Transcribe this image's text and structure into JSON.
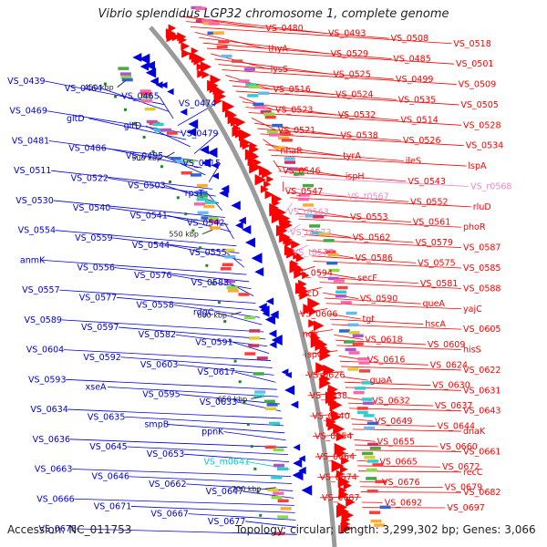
{
  "title": "Vibrio splendidus LGP32 chromosome 1, complete genome",
  "accession": "Accession: NC_011753",
  "summary": "Topology: circular; Length: 3,299,302 bp; Genes: 3,066",
  "colors": {
    "forward_genes": "#ff0000",
    "reverse_genes": "#0000dd",
    "rna_genes": "#ee88cc",
    "misc_rna": "#00cccc",
    "backbone": "#9a9a9a",
    "tick": "#228822"
  },
  "kbp_marks": [
    "450 kbp",
    "500 kbp",
    "550 kbp",
    "600 kbp",
    "650 kbp",
    "700 kbp"
  ],
  "left_labels": [
    {
      "text": "VS_0439",
      "color": "blue"
    },
    {
      "text": "VS_0464",
      "color": "blue"
    },
    {
      "text": "VS_0465",
      "color": "blue"
    },
    {
      "text": "VS_0474",
      "color": "blue"
    },
    {
      "text": "VS_0469",
      "color": "blue"
    },
    {
      "text": "gltD",
      "color": "blue"
    },
    {
      "text": "gltD",
      "color": "blue"
    },
    {
      "text": "VS_0479",
      "color": "blue"
    },
    {
      "text": "VS_0481",
      "color": "blue"
    },
    {
      "text": "VS_0486",
      "color": "blue"
    },
    {
      "text": "VS_0495",
      "color": "blue"
    },
    {
      "text": "VS_0515",
      "color": "blue"
    },
    {
      "text": "VS_0511",
      "color": "blue"
    },
    {
      "text": "VS_0522",
      "color": "blue"
    },
    {
      "text": "VS_0503",
      "color": "blue"
    },
    {
      "text": "rpsT",
      "color": "blue"
    },
    {
      "text": "VS_0530",
      "color": "blue"
    },
    {
      "text": "VS_0540",
      "color": "blue"
    },
    {
      "text": "VS_0541",
      "color": "blue"
    },
    {
      "text": "VS_0542",
      "color": "blue"
    },
    {
      "text": "VS_0554",
      "color": "blue"
    },
    {
      "text": "VS_0559",
      "color": "blue"
    },
    {
      "text": "VS_0544",
      "color": "blue"
    },
    {
      "text": "VS_0555",
      "color": "blue"
    },
    {
      "text": "anmK",
      "color": "blue"
    },
    {
      "text": "VS_0556",
      "color": "blue"
    },
    {
      "text": "VS_0576",
      "color": "blue"
    },
    {
      "text": "VS_0583",
      "color": "blue"
    },
    {
      "text": "VS_0557",
      "color": "blue"
    },
    {
      "text": "VS_0577",
      "color": "blue"
    },
    {
      "text": "VS_0558",
      "color": "blue"
    },
    {
      "text": "rdgC",
      "color": "blue"
    },
    {
      "text": "VS_0589",
      "color": "blue"
    },
    {
      "text": "VS_0597",
      "color": "blue"
    },
    {
      "text": "VS_0582",
      "color": "blue"
    },
    {
      "text": "VS_0591",
      "color": "blue"
    },
    {
      "text": "VS_0604",
      "color": "blue"
    },
    {
      "text": "VS_0592",
      "color": "blue"
    },
    {
      "text": "VS_0603",
      "color": "blue"
    },
    {
      "text": "VS_0617",
      "color": "blue"
    },
    {
      "text": "VS_0593",
      "color": "blue"
    },
    {
      "text": "xseA",
      "color": "blue"
    },
    {
      "text": "VS_0595",
      "color": "blue"
    },
    {
      "text": "VS_0633",
      "color": "blue"
    },
    {
      "text": "VS_0634",
      "color": "blue"
    },
    {
      "text": "VS_0635",
      "color": "blue"
    },
    {
      "text": "smpB",
      "color": "blue"
    },
    {
      "text": "ppnK",
      "color": "blue"
    },
    {
      "text": "VS_0636",
      "color": "blue"
    },
    {
      "text": "VS_0645",
      "color": "blue"
    },
    {
      "text": "VS_0653",
      "color": "blue"
    },
    {
      "text": "VS_m0641",
      "color": "cyan"
    },
    {
      "text": "VS_0663",
      "color": "blue"
    },
    {
      "text": "VS_0646",
      "color": "blue"
    },
    {
      "text": "VS_0662",
      "color": "blue"
    },
    {
      "text": "VS_0647",
      "color": "blue"
    },
    {
      "text": "VS_0666",
      "color": "blue"
    },
    {
      "text": "VS_0671",
      "color": "blue"
    },
    {
      "text": "VS_0667",
      "color": "blue"
    },
    {
      "text": "VS_0677",
      "color": "blue"
    },
    {
      "text": "VS_0678",
      "color": "blue"
    }
  ],
  "right_labels": [
    {
      "text": "VS_0480",
      "color": "red"
    },
    {
      "text": "VS_0493",
      "color": "red"
    },
    {
      "text": "VS_0508",
      "color": "red"
    },
    {
      "text": "VS_0518",
      "color": "red"
    },
    {
      "text": "thyA",
      "color": "red"
    },
    {
      "text": "VS_0529",
      "color": "red"
    },
    {
      "text": "VS_0485",
      "color": "red"
    },
    {
      "text": "VS_0501",
      "color": "red"
    },
    {
      "text": "lysS",
      "color": "red"
    },
    {
      "text": "VS_0525",
      "color": "red"
    },
    {
      "text": "VS_0499",
      "color": "red"
    },
    {
      "text": "VS_0509",
      "color": "red"
    },
    {
      "text": "VS_0516",
      "color": "red"
    },
    {
      "text": "VS_0524",
      "color": "red"
    },
    {
      "text": "VS_0535",
      "color": "red"
    },
    {
      "text": "VS_0505",
      "color": "red"
    },
    {
      "text": "VS_0523",
      "color": "red"
    },
    {
      "text": "VS_0532",
      "color": "red"
    },
    {
      "text": "VS_0514",
      "color": "red"
    },
    {
      "text": "VS_0528",
      "color": "red"
    },
    {
      "text": "VS_0521",
      "color": "red"
    },
    {
      "text": "VS_0538",
      "color": "red"
    },
    {
      "text": "VS_0526",
      "color": "red"
    },
    {
      "text": "VS_0534",
      "color": "red"
    },
    {
      "text": "nhaR",
      "color": "red"
    },
    {
      "text": "tyrA",
      "color": "red"
    },
    {
      "text": "ileS",
      "color": "red"
    },
    {
      "text": "lspA",
      "color": "red"
    },
    {
      "text": "VS_0546",
      "color": "red"
    },
    {
      "text": "ispH",
      "color": "red"
    },
    {
      "text": "VS_0543",
      "color": "red"
    },
    {
      "text": "VS_r0568",
      "color": "pink"
    },
    {
      "text": "VS_0547",
      "color": "red"
    },
    {
      "text": "VS_t0567",
      "color": "pink"
    },
    {
      "text": "VS_0552",
      "color": "red"
    },
    {
      "text": "rluD",
      "color": "red"
    },
    {
      "text": "VS_r0563",
      "color": "pink"
    },
    {
      "text": "VS_0553",
      "color": "red"
    },
    {
      "text": "VS_0561",
      "color": "red"
    },
    {
      "text": "phoR",
      "color": "red"
    },
    {
      "text": "VS_r0573",
      "color": "pink"
    },
    {
      "text": "VS_0562",
      "color": "red"
    },
    {
      "text": "VS_0579",
      "color": "red"
    },
    {
      "text": "VS_0587",
      "color": "red"
    },
    {
      "text": "VS_t0577",
      "color": "pink"
    },
    {
      "text": "VS_0586",
      "color": "red"
    },
    {
      "text": "VS_0575",
      "color": "red"
    },
    {
      "text": "VS_0585",
      "color": "red"
    },
    {
      "text": "VS_0594",
      "color": "red"
    },
    {
      "text": "secF",
      "color": "red"
    },
    {
      "text": "VS_0581",
      "color": "red"
    },
    {
      "text": "VS_0588",
      "color": "red"
    },
    {
      "text": "secD",
      "color": "red"
    },
    {
      "text": "VS_0590",
      "color": "red"
    },
    {
      "text": "queA",
      "color": "red"
    },
    {
      "text": "yajC",
      "color": "red"
    },
    {
      "text": "VS_0606",
      "color": "red"
    },
    {
      "text": "tgt",
      "color": "red"
    },
    {
      "text": "hscA",
      "color": "red"
    },
    {
      "text": "VS_0605",
      "color": "red"
    },
    {
      "text": "ndk",
      "color": "red"
    },
    {
      "text": "VS_0618",
      "color": "red"
    },
    {
      "text": "VS_0609",
      "color": "red"
    },
    {
      "text": "hisS",
      "color": "red"
    },
    {
      "text": "ispG",
      "color": "red"
    },
    {
      "text": "VS_0616",
      "color": "red"
    },
    {
      "text": "VS_0624",
      "color": "red"
    },
    {
      "text": "VS_0622",
      "color": "red"
    },
    {
      "text": "VS_0626",
      "color": "red"
    },
    {
      "text": "guaA",
      "color": "red"
    },
    {
      "text": "VS_0630",
      "color": "red"
    },
    {
      "text": "VS_0631",
      "color": "red"
    },
    {
      "text": "VS_0638",
      "color": "red"
    },
    {
      "text": "VS_0632",
      "color": "red"
    },
    {
      "text": "VS_0637",
      "color": "red"
    },
    {
      "text": "VS_0643",
      "color": "red"
    },
    {
      "text": "VS_0640",
      "color": "red"
    },
    {
      "text": "VS_0649",
      "color": "red"
    },
    {
      "text": "VS_0644",
      "color": "red"
    },
    {
      "text": "dnaK",
      "color": "red"
    },
    {
      "text": "VS_0654",
      "color": "red"
    },
    {
      "text": "VS_0655",
      "color": "red"
    },
    {
      "text": "VS_0660",
      "color": "red"
    },
    {
      "text": "VS_0661",
      "color": "red"
    },
    {
      "text": "VS_0664",
      "color": "red"
    },
    {
      "text": "VS_0665",
      "color": "red"
    },
    {
      "text": "VS_0672",
      "color": "red"
    },
    {
      "text": "recC",
      "color": "red"
    },
    {
      "text": "VS_0674",
      "color": "red"
    },
    {
      "text": "VS_0676",
      "color": "red"
    },
    {
      "text": "VS_0679",
      "color": "red"
    },
    {
      "text": "VS_0682",
      "color": "red"
    },
    {
      "text": "VS_0687",
      "color": "red"
    },
    {
      "text": "VS_0692",
      "color": "red"
    },
    {
      "text": "VS_0697",
      "color": "red"
    }
  ]
}
